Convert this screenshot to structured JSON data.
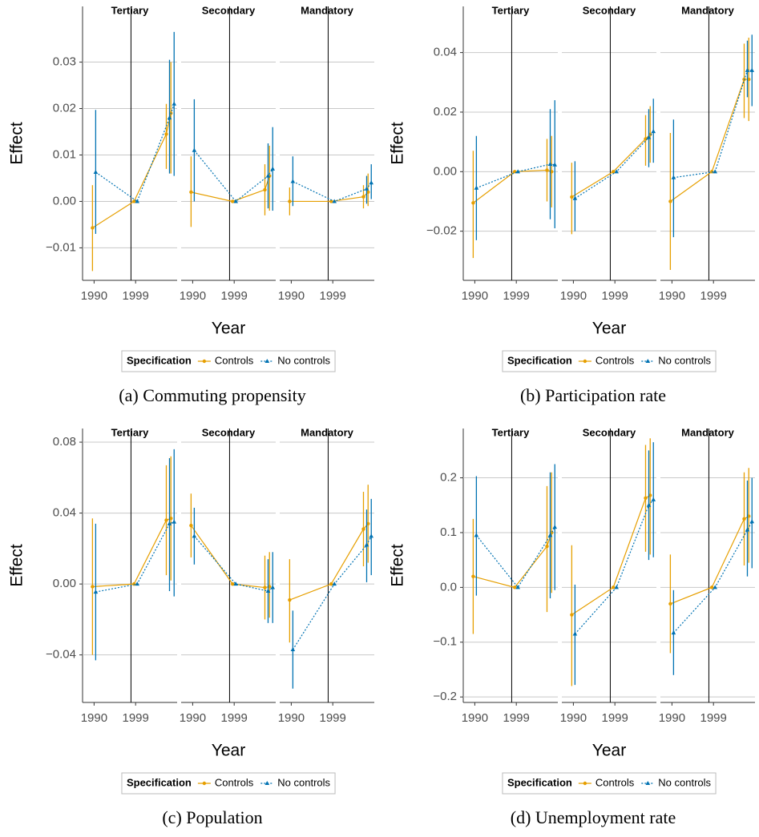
{
  "chart_data": [
    {
      "type": "line",
      "title": "(a) Commuting propensity",
      "y_label": "Effect",
      "x_label": "Year",
      "legend_title": "Specification",
      "ylim": [
        -0.017,
        0.042
      ],
      "yticks": [
        {
          "value": -0.01,
          "label": "−0.01"
        },
        {
          "value": 0,
          "label": "0.00"
        },
        0.01,
        0.02,
        0.03
      ],
      "xlim": [
        1987.5,
        2008
      ],
      "xticks": [
        1990,
        1999
      ],
      "reference_x": 1998,
      "grid": true,
      "facets": [
        {
          "name": "Tertiary",
          "x": [
            1990,
            1999,
            2006,
            2007
          ],
          "series": [
            {
              "name": "Controls",
              "color": "#E69F00",
              "linestyle": "solid",
              "marker": "circle",
              "values": [
                -0.0057,
                0,
                0.0145,
                0.019
              ],
              "lower": [
                -0.015,
                0,
                0.007,
                0.006
              ],
              "upper": [
                0.0035,
                0,
                0.021,
                0.03
              ]
            },
            {
              "name": "No controls",
              "color": "#0072B2",
              "linestyle": "dotted",
              "marker": "triangle",
              "values": [
                0.0063,
                0,
                0.018,
                0.021
              ],
              "lower": [
                -0.007,
                0,
                0.006,
                0.0055
              ],
              "upper": [
                0.0197,
                0,
                0.0305,
                0.0365
              ]
            }
          ]
        },
        {
          "name": "Secondary",
          "x": [
            1990,
            1999,
            2006,
            2007
          ],
          "series": [
            {
              "name": "Controls",
              "color": "#E69F00",
              "linestyle": "solid",
              "marker": "circle",
              "values": [
                0.002,
                0,
                0.0025,
                0.0055
              ],
              "lower": [
                -0.0055,
                0,
                -0.003,
                -0.002
              ],
              "upper": [
                0.0097,
                0,
                0.008,
                0.012
              ]
            },
            {
              "name": "No controls",
              "color": "#0072B2",
              "linestyle": "dotted",
              "marker": "triangle",
              "values": [
                0.011,
                0,
                0.0055,
                0.007
              ],
              "lower": [
                0,
                0,
                -0.0015,
                -0.002
              ],
              "upper": [
                0.022,
                0,
                0.0125,
                0.016
              ]
            }
          ]
        },
        {
          "name": "Mandatory",
          "x": [
            1990,
            1999,
            2006,
            2007
          ],
          "series": [
            {
              "name": "Controls",
              "color": "#E69F00",
              "linestyle": "solid",
              "marker": "circle",
              "values": [
                0,
                0,
                0.001,
                0.002
              ],
              "lower": [
                -0.003,
                0,
                -0.0015,
                -0.001
              ],
              "upper": [
                0.003,
                0,
                0.0035,
                0.006
              ]
            },
            {
              "name": "No controls",
              "color": "#0072B2",
              "linestyle": "dotted",
              "marker": "triangle",
              "values": [
                0.0043,
                0,
                0.0027,
                0.004
              ],
              "lower": [
                -0.001,
                0,
                -0.0005,
                0.0005
              ],
              "upper": [
                0.0097,
                0,
                0.0055,
                0.008
              ]
            }
          ]
        }
      ]
    },
    {
      "type": "line",
      "title": "(b) Participation rate",
      "y_label": "Effect",
      "x_label": "Year",
      "legend_title": "Specification",
      "ylim": [
        -0.0365,
        0.0555
      ],
      "yticks": [
        {
          "value": -0.02,
          "label": "−0.02"
        },
        {
          "value": 0,
          "label": "0.00"
        },
        0.02,
        0.04
      ],
      "xlim": [
        1987.5,
        2008
      ],
      "xticks": [
        1990,
        1999
      ],
      "reference_x": 1998,
      "grid": true,
      "facets": [
        {
          "name": "Tertiary",
          "x": [
            1990,
            1999,
            2006,
            2007
          ],
          "series": [
            {
              "name": "Controls",
              "color": "#E69F00",
              "linestyle": "solid",
              "marker": "circle",
              "values": [
                -0.0105,
                0,
                0.0005,
                0
              ],
              "lower": [
                -0.029,
                0,
                -0.01,
                -0.012
              ],
              "upper": [
                0.007,
                0,
                0.011,
                0.012
              ]
            },
            {
              "name": "No controls",
              "color": "#0072B2",
              "linestyle": "dotted",
              "marker": "triangle",
              "values": [
                -0.0055,
                0,
                0.0025,
                0.0023
              ],
              "lower": [
                -0.023,
                0,
                -0.016,
                -0.019
              ],
              "upper": [
                0.012,
                0,
                0.021,
                0.024
              ]
            }
          ]
        },
        {
          "name": "Secondary",
          "x": [
            1990,
            1999,
            2006,
            2007
          ],
          "series": [
            {
              "name": "Controls",
              "color": "#E69F00",
              "linestyle": "solid",
              "marker": "circle",
              "values": [
                -0.0085,
                0,
                0.011,
                0.0125
              ],
              "lower": [
                -0.021,
                0,
                0.002,
                0.003
              ],
              "upper": [
                0.003,
                0,
                0.019,
                0.022
              ]
            },
            {
              "name": "No controls",
              "color": "#0072B2",
              "linestyle": "dotted",
              "marker": "triangle",
              "values": [
                -0.009,
                0,
                0.0115,
                0.0135
              ],
              "lower": [
                -0.02,
                0,
                0.0015,
                0.003
              ],
              "upper": [
                0.0035,
                0,
                0.021,
                0.0245
              ]
            }
          ]
        },
        {
          "name": "Mandatory",
          "x": [
            1990,
            1999,
            2006,
            2007
          ],
          "series": [
            {
              "name": "Controls",
              "color": "#E69F00",
              "linestyle": "solid",
              "marker": "circle",
              "values": [
                -0.01,
                0,
                0.031,
                0.031
              ],
              "lower": [
                -0.033,
                0,
                0.018,
                0.017
              ],
              "upper": [
                0.013,
                0,
                0.043,
                0.045
              ]
            },
            {
              "name": "No controls",
              "color": "#0072B2",
              "linestyle": "dotted",
              "marker": "triangle",
              "values": [
                -0.002,
                0,
                0.034,
                0.034
              ],
              "lower": [
                -0.022,
                0,
                0.025,
                0.022
              ],
              "upper": [
                0.0175,
                0,
                0.044,
                0.046
              ]
            }
          ]
        }
      ]
    },
    {
      "type": "line",
      "title": "(c) Population",
      "y_label": "Effect",
      "x_label": "Year",
      "legend_title": "Specification",
      "ylim": [
        -0.0668,
        0.0877
      ],
      "yticks": [
        {
          "value": -0.04,
          "label": "−0.04"
        },
        {
          "value": 0,
          "label": "0.00"
        },
        0.04,
        0.08
      ],
      "xlim": [
        1987.5,
        2008
      ],
      "xticks": [
        1990,
        1999
      ],
      "reference_x": 1998,
      "grid": true,
      "facets": [
        {
          "name": "Tertiary",
          "x": [
            1990,
            1999,
            2006,
            2007
          ],
          "series": [
            {
              "name": "Controls",
              "color": "#E69F00",
              "linestyle": "solid",
              "marker": "circle",
              "values": [
                -0.0015,
                0,
                0.036,
                0.037
              ],
              "lower": [
                -0.04,
                0,
                0.005,
                0.002
              ],
              "upper": [
                0.037,
                0,
                0.067,
                0.072
              ]
            },
            {
              "name": "No controls",
              "color": "#0072B2",
              "linestyle": "dotted",
              "marker": "triangle",
              "values": [
                -0.0045,
                0,
                0.034,
                0.035
              ],
              "lower": [
                -0.043,
                0,
                -0.004,
                -0.007
              ],
              "upper": [
                0.034,
                0,
                0.071,
                0.076
              ]
            }
          ]
        },
        {
          "name": "Secondary",
          "x": [
            1990,
            1999,
            2006,
            2007
          ],
          "series": [
            {
              "name": "Controls",
              "color": "#E69F00",
              "linestyle": "solid",
              "marker": "circle",
              "values": [
                0.033,
                0,
                -0.002,
                -0.0015
              ],
              "lower": [
                0.015,
                0,
                -0.02,
                -0.019
              ],
              "upper": [
                0.051,
                0,
                0.016,
                0.018
              ]
            },
            {
              "name": "No controls",
              "color": "#0072B2",
              "linestyle": "dotted",
              "marker": "triangle",
              "values": [
                0.027,
                0,
                -0.004,
                -0.002
              ],
              "lower": [
                0.011,
                0,
                -0.022,
                -0.022
              ],
              "upper": [
                0.043,
                0,
                0.014,
                0.018
              ]
            }
          ]
        },
        {
          "name": "Mandatory",
          "x": [
            1990,
            1999,
            2006,
            2007
          ],
          "series": [
            {
              "name": "Controls",
              "color": "#E69F00",
              "linestyle": "solid",
              "marker": "circle",
              "values": [
                -0.009,
                0,
                0.031,
                0.034
              ],
              "lower": [
                -0.033,
                0,
                0.01,
                0.012
              ],
              "upper": [
                0.014,
                0,
                0.052,
                0.056
              ]
            },
            {
              "name": "No controls",
              "color": "#0072B2",
              "linestyle": "dotted",
              "marker": "triangle",
              "values": [
                -0.037,
                0,
                0.022,
                0.027
              ],
              "lower": [
                -0.059,
                0,
                0.001,
                0.005
              ],
              "upper": [
                -0.015,
                0,
                0.042,
                0.048
              ]
            }
          ]
        }
      ]
    },
    {
      "type": "line",
      "title": "(d) Unemployment rate",
      "y_label": "Effect",
      "x_label": "Year",
      "legend_title": "Specification",
      "ylim": [
        -0.21,
        0.29
      ],
      "yticks": [
        {
          "value": -0.2,
          "label": "−0.2"
        },
        {
          "value": -0.1,
          "label": "−0.1"
        },
        {
          "value": 0,
          "label": "0.0"
        },
        0.1,
        0.2
      ],
      "xlim": [
        1987.5,
        2008
      ],
      "xticks": [
        1990,
        1999
      ],
      "reference_x": 1998,
      "grid": true,
      "facets": [
        {
          "name": "Tertiary",
          "x": [
            1990,
            1999,
            2006,
            2007
          ],
          "series": [
            {
              "name": "Controls",
              "color": "#E69F00",
              "linestyle": "solid",
              "marker": "circle",
              "values": [
                0.02,
                0,
                0.075,
                0.1
              ],
              "lower": [
                -0.085,
                0,
                -0.045,
                -0.01
              ],
              "upper": [
                0.125,
                0,
                0.185,
                0.21
              ]
            },
            {
              "name": "No controls",
              "color": "#0072B2",
              "linestyle": "dotted",
              "marker": "triangle",
              "values": [
                0.095,
                0,
                0.095,
                0.11
              ],
              "lower": [
                -0.015,
                0,
                -0.02,
                -0.005
              ],
              "upper": [
                0.203,
                0,
                0.21,
                0.225
              ]
            }
          ]
        },
        {
          "name": "Secondary",
          "x": [
            1990,
            1999,
            2006,
            2007
          ],
          "series": [
            {
              "name": "Controls",
              "color": "#E69F00",
              "linestyle": "solid",
              "marker": "circle",
              "values": [
                -0.05,
                0,
                0.163,
                0.168
              ],
              "lower": [
                -0.18,
                0,
                0.065,
                0.06
              ],
              "upper": [
                0.077,
                0,
                0.26,
                0.272
              ]
            },
            {
              "name": "No controls",
              "color": "#0072B2",
              "linestyle": "dotted",
              "marker": "triangle",
              "values": [
                -0.085,
                0,
                0.15,
                0.16
              ],
              "lower": [
                -0.178,
                0,
                0.05,
                0.055
              ],
              "upper": [
                0.005,
                0,
                0.25,
                0.265
              ]
            }
          ]
        },
        {
          "name": "Mandatory",
          "x": [
            1990,
            1999,
            2006,
            2007
          ],
          "series": [
            {
              "name": "Controls",
              "color": "#E69F00",
              "linestyle": "solid",
              "marker": "circle",
              "values": [
                -0.03,
                0,
                0.125,
                0.13
              ],
              "lower": [
                -0.12,
                0,
                0.04,
                0.045
              ],
              "upper": [
                0.06,
                0,
                0.21,
                0.218
              ]
            },
            {
              "name": "No controls",
              "color": "#0072B2",
              "linestyle": "dotted",
              "marker": "triangle",
              "values": [
                -0.083,
                0,
                0.105,
                0.12
              ],
              "lower": [
                -0.16,
                0,
                0.02,
                0.035
              ],
              "upper": [
                -0.005,
                0,
                0.195,
                0.2
              ]
            }
          ]
        }
      ]
    }
  ]
}
